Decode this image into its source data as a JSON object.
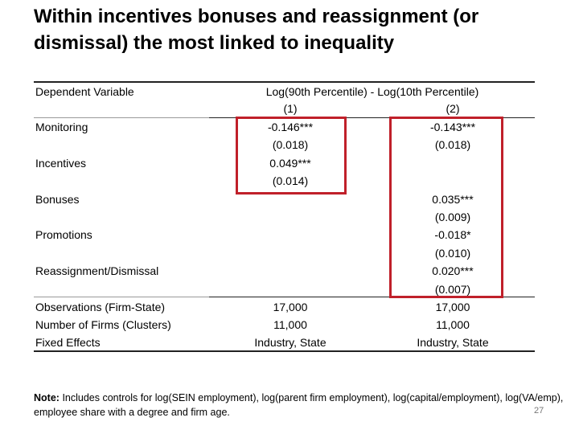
{
  "title": "Within incentives bonuses and reassignment (or dismissal) the most linked to inequality",
  "table": {
    "header": {
      "dependent_variable": "Dependent Variable",
      "span": "Log(90th Percentile) - Log(10th Percentile)",
      "columns": [
        "(1)",
        "(2)"
      ]
    },
    "rows": [
      {
        "label": "Monitoring",
        "col1": [
          "-0.146***",
          "(0.018)"
        ],
        "col2": [
          "-0.143***",
          "(0.018)"
        ]
      },
      {
        "label": "Incentives",
        "col1": [
          "0.049***",
          "(0.014)"
        ]
      },
      {
        "label": "Bonuses",
        "col2": [
          "0.035***",
          "(0.009)"
        ]
      },
      {
        "label": "Promotions",
        "col2": [
          "-0.018*",
          "(0.010)"
        ]
      },
      {
        "label": "Reassignment/Dismissal",
        "col2": [
          "0.020***",
          "(0.007)"
        ]
      }
    ],
    "stats": [
      {
        "label": "Observations (Firm-State)",
        "values": [
          "17,000",
          "17,000"
        ]
      },
      {
        "label": "Number of Firms (Clusters)",
        "values": [
          "11,000",
          "11,000"
        ]
      },
      {
        "label": "Fixed Effects",
        "values": [
          "Industry, State",
          "Industry, State"
        ]
      }
    ]
  },
  "note": {
    "label": "Note:",
    "text": "Includes controls for log(SEIN employment), log(parent firm employment), log(capital/employment), log(VA/emp), employee share with a degree and firm age."
  },
  "page_number": "27"
}
